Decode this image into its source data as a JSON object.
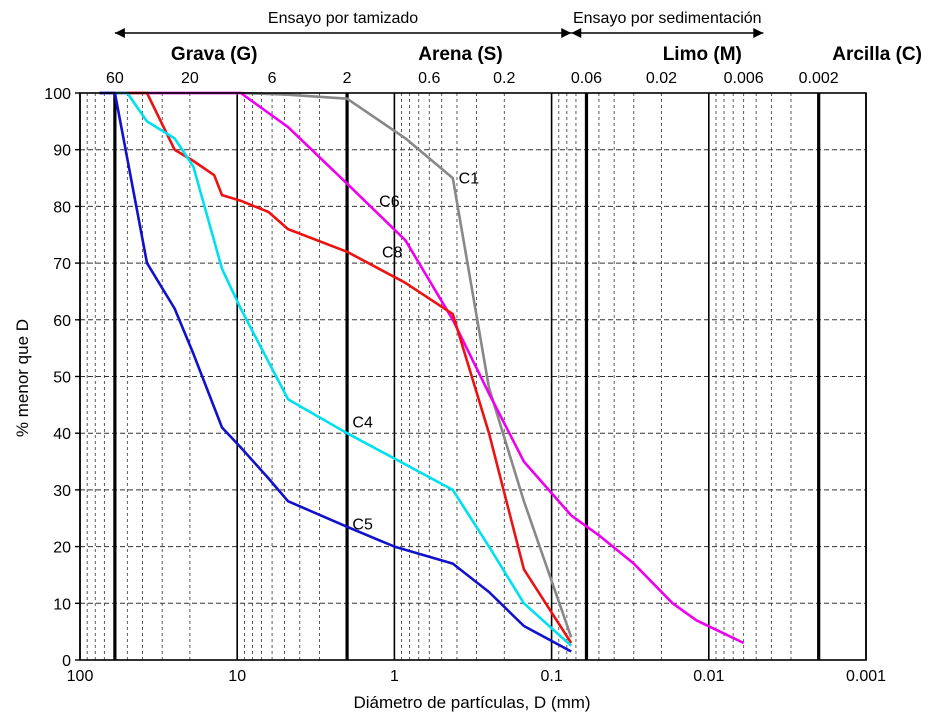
{
  "chart_data": {
    "type": "line",
    "xlabel": "Diámetro de partículas, D (mm)",
    "ylabel": "% menor que D",
    "x_scale": "log-reversed",
    "xlim": [
      100,
      0.001
    ],
    "ylim": [
      0,
      100
    ],
    "grid": true,
    "bottom_ticks": [
      "100",
      "10",
      "1",
      "0.1",
      "0.01",
      "0.001"
    ],
    "bottom_tick_values": [
      100,
      10,
      1,
      0.1,
      0.01,
      0.001
    ],
    "y_ticks": [
      "0",
      "10",
      "20",
      "30",
      "40",
      "50",
      "60",
      "70",
      "80",
      "90",
      "100"
    ],
    "y_tick_values": [
      0,
      10,
      20,
      30,
      40,
      50,
      60,
      70,
      80,
      90,
      100
    ],
    "top_ticks": [
      "60",
      "20",
      "6",
      "2",
      "0.6",
      "0.2",
      "0.06",
      "0.02",
      "0.006",
      "0.002"
    ],
    "top_tick_values": [
      60,
      20,
      6,
      2,
      0.6,
      0.2,
      0.06,
      0.02,
      0.006,
      0.002
    ],
    "bold_boundaries": [
      60,
      2,
      0.06,
      0.002
    ],
    "category_labels": [
      {
        "text": "Grava (G)",
        "x": 14
      },
      {
        "text": "Arena (S)",
        "x": 0.38
      },
      {
        "text": "Limo (M)",
        "x": 0.011
      },
      {
        "text": "Arcilla (C)",
        "x": 0.00085
      }
    ],
    "range_annotations": [
      {
        "text": "Ensayo por tamizado",
        "from": 60,
        "to": 0.075
      },
      {
        "text": "Ensayo por sedimentación",
        "from": 0.075,
        "to": 0.0045
      }
    ],
    "series": [
      {
        "name": "C1",
        "color": "#888888",
        "x": [
          75,
          37.5,
          19,
          9.5,
          4.75,
          2,
          0.85,
          0.425,
          0.25,
          0.15,
          0.075
        ],
        "y": [
          100,
          100,
          100,
          100,
          99.7,
          99,
          92,
          85,
          48,
          28,
          4
        ]
      },
      {
        "name": "C6",
        "color": "#ee00ee",
        "x": [
          75,
          37.5,
          19,
          9.5,
          4.75,
          2,
          0.85,
          0.425,
          0.25,
          0.15,
          0.075,
          0.05,
          0.03,
          0.017,
          0.012,
          0.006
        ],
        "y": [
          100,
          100,
          100,
          100,
          94,
          84,
          74,
          60,
          47,
          35,
          25.5,
          22,
          17,
          10,
          7,
          3
        ]
      },
      {
        "name": "C8",
        "color": "#ee1111",
        "x": [
          75,
          50,
          37.5,
          25,
          19,
          14,
          12.5,
          9.5,
          6.3,
          4.75,
          2,
          0.85,
          0.425,
          0.25,
          0.15,
          0.075
        ],
        "y": [
          100,
          100,
          100,
          90,
          88,
          85.5,
          82,
          81,
          79,
          76,
          72,
          66.5,
          61,
          40,
          16,
          3
        ]
      },
      {
        "name": "C4",
        "color": "#00e0ee",
        "x": [
          75,
          50,
          37.5,
          25,
          19,
          12.5,
          9.5,
          4.75,
          2,
          0.425,
          0.25,
          0.15,
          0.075
        ],
        "y": [
          100,
          100,
          95,
          92,
          87,
          69,
          62,
          46,
          40,
          30,
          20,
          10,
          2.5
        ]
      },
      {
        "name": "C5",
        "color": "#1111cc",
        "x": [
          75,
          60,
          37.5,
          25,
          19,
          12.5,
          9.5,
          6.3,
          4.75,
          2,
          1,
          0.425,
          0.25,
          0.15,
          0.075
        ],
        "y": [
          100,
          100,
          70,
          62,
          54,
          41,
          37.5,
          32,
          28,
          23.5,
          20,
          17,
          12,
          6,
          1.5
        ]
      }
    ],
    "curve_labels": [
      {
        "text": "C1",
        "x": 0.39,
        "y": 84
      },
      {
        "text": "C6",
        "x": 1.25,
        "y": 80
      },
      {
        "text": "C8",
        "x": 1.2,
        "y": 71
      },
      {
        "text": "C4",
        "x": 1.85,
        "y": 41
      },
      {
        "text": "C5",
        "x": 1.85,
        "y": 23
      }
    ]
  }
}
